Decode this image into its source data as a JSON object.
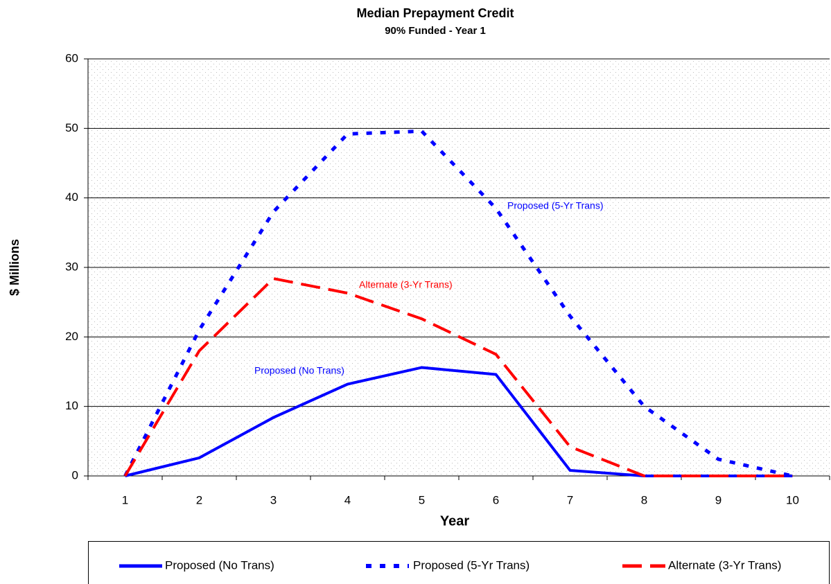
{
  "chart_data": {
    "type": "line",
    "title": "Median Prepayment Credit",
    "subtitle": "90% Funded - Year 1",
    "x_label": "Year",
    "y_label": "$ Millions",
    "categories": [
      "1",
      "2",
      "3",
      "4",
      "5",
      "6",
      "7",
      "8",
      "9",
      "10"
    ],
    "series": [
      {
        "name": "Proposed (No Trans)",
        "color": "#0000ff",
        "values": [
          0,
          2.6,
          8.4,
          13.2,
          15.6,
          14.6,
          0.8,
          0,
          0,
          0
        ]
      },
      {
        "name": "Proposed (5-Yr Trans)",
        "color": "#0000ff",
        "values": [
          0,
          21,
          38,
          49.2,
          49.6,
          38.5,
          23,
          10,
          2.4,
          0
        ]
      },
      {
        "name": "Alternate (3-Yr Trans)",
        "color": "#ff0000",
        "values": [
          0,
          18,
          28.4,
          26.3,
          22.6,
          17.5,
          4.2,
          0,
          0,
          0
        ]
      }
    ],
    "annotations": [
      "Proposed (5-Yr Trans)",
      "Alternate (3-Yr Trans)",
      "Proposed (No Trans)"
    ],
    "ylim": [
      0,
      60
    ],
    "yticks": [
      0,
      10,
      20,
      30,
      40,
      50,
      60
    ],
    "grid": true,
    "legend": "bottom"
  }
}
